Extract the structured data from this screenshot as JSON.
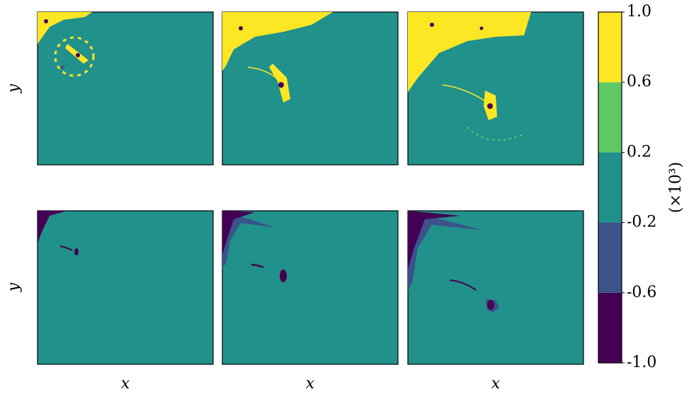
{
  "chart_data": {
    "type": "contourf",
    "xlabel": "x",
    "ylabel": "y",
    "colorbar": {
      "label": "(×10³)",
      "ticks": [
        {
          "value": -1,
          "label": "-1.0"
        },
        -0.6,
        -0.2,
        0.2,
        0.6,
        {
          "value": 1,
          "label": "1.0"
        }
      ],
      "colors": [
        "#440154",
        "#3b528b",
        "#21918c",
        "#5ec962",
        "#fde725"
      ]
    }
  }
}
